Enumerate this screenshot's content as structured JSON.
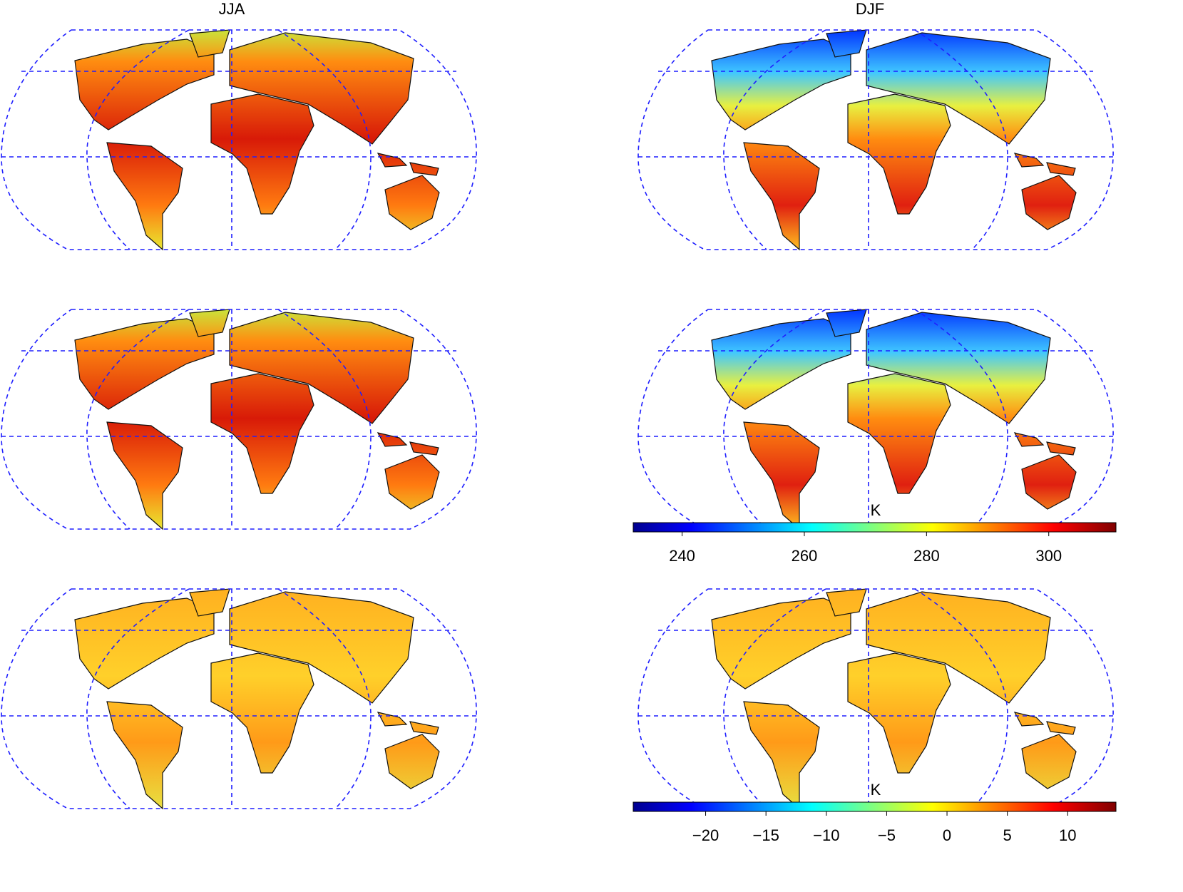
{
  "panels": {
    "titles": [
      "JJA",
      "DJF"
    ]
  },
  "colorbars": [
    {
      "unit": "K",
      "lim": [
        232,
        311
      ],
      "ticks": [
        240,
        260,
        280,
        300
      ]
    },
    {
      "unit": "K",
      "lim": [
        -26,
        14
      ],
      "ticks": [
        {
          "value": -20,
          "label": "−20"
        },
        {
          "value": -15,
          "label": "−15"
        },
        {
          "value": -10,
          "label": "−10"
        },
        {
          "value": -5,
          "label": "−5"
        },
        0,
        5,
        10
      ]
    }
  ]
}
